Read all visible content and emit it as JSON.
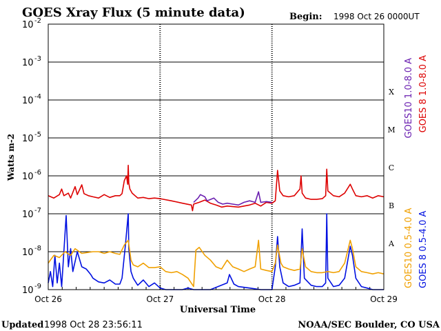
{
  "chart_data": {
    "type": "line",
    "title": "GOES Xray Flux (5 minute data)",
    "begin_label": "Begin:",
    "begin_value": "1998 Oct 26 0000UT",
    "ylabel": "Watts m-2",
    "xlabel": "Universal Time",
    "updated_label": "Updated",
    "updated_value": "1998 Oct 28 23:56:11",
    "credit": "NOAA/SEC Boulder, CO USA",
    "y_scale": "log",
    "ylim": [
      1e-09,
      0.01
    ],
    "y_ticks": [
      {
        "base": "10",
        "exp": "-2",
        "value": 0.01
      },
      {
        "base": "10",
        "exp": "-3",
        "value": 0.001
      },
      {
        "base": "10",
        "exp": "-4",
        "value": 0.0001
      },
      {
        "base": "10",
        "exp": "-5",
        "value": 1e-05
      },
      {
        "base": "10",
        "exp": "-6",
        "value": 1e-06
      },
      {
        "base": "10",
        "exp": "-7",
        "value": 1e-07
      },
      {
        "base": "10",
        "exp": "-8",
        "value": 1e-08
      },
      {
        "base": "10",
        "exp": "-9",
        "value": 1e-09
      }
    ],
    "x_unit": "days since 1998 Oct 26 00:00 UT",
    "xlim": [
      0,
      3
    ],
    "x_ticks": [
      {
        "label": "Oct 26",
        "value": 0
      },
      {
        "label": "Oct 27",
        "value": 1
      },
      {
        "label": "Oct 28",
        "value": 2
      },
      {
        "label": "Oct 29",
        "value": 3
      }
    ],
    "flare_classes": [
      {
        "label": "X",
        "value": 0.0001
      },
      {
        "label": "M",
        "value": 1e-05
      },
      {
        "label": "C",
        "value": 1e-06
      },
      {
        "label": "B",
        "value": 1e-07
      },
      {
        "label": "A",
        "value": 1e-08
      }
    ],
    "legend_placement": "right",
    "series": [
      {
        "name": "GOES 8  1.0-8.0 A",
        "color": "#dd0000",
        "points": [
          [
            0.0,
            3e-07
          ],
          [
            0.05,
            2.6e-07
          ],
          [
            0.1,
            3.2e-07
          ],
          [
            0.12,
            4.5e-07
          ],
          [
            0.14,
            3e-07
          ],
          [
            0.18,
            3.5e-07
          ],
          [
            0.2,
            2.6e-07
          ],
          [
            0.24,
            5.2e-07
          ],
          [
            0.26,
            3.2e-07
          ],
          [
            0.3,
            5.8e-07
          ],
          [
            0.32,
            3.4e-07
          ],
          [
            0.36,
            3e-07
          ],
          [
            0.4,
            2.8e-07
          ],
          [
            0.45,
            2.6e-07
          ],
          [
            0.5,
            3.2e-07
          ],
          [
            0.55,
            2.7e-07
          ],
          [
            0.6,
            3e-07
          ],
          [
            0.64,
            3e-07
          ],
          [
            0.66,
            3.4e-07
          ],
          [
            0.68,
            7.5e-07
          ],
          [
            0.7,
            1e-06
          ],
          [
            0.71,
            6e-07
          ],
          [
            0.715,
            1.9e-06
          ],
          [
            0.72,
            6.5e-07
          ],
          [
            0.73,
            4.5e-07
          ],
          [
            0.75,
            3.5e-07
          ],
          [
            0.8,
            2.6e-07
          ],
          [
            0.85,
            2.7e-07
          ],
          [
            0.9,
            2.5e-07
          ],
          [
            0.95,
            2.6e-07
          ],
          [
            1.0,
            2.5e-07
          ],
          [
            1.1,
            2.2e-07
          ],
          [
            1.2,
            1.9e-07
          ],
          [
            1.28,
            1.7e-07
          ],
          [
            1.29,
            1.2e-07
          ],
          [
            1.3,
            1.8e-07
          ],
          [
            1.35,
            2e-07
          ],
          [
            1.4,
            2.3e-07
          ],
          [
            1.45,
            1.9e-07
          ],
          [
            1.5,
            1.7e-07
          ],
          [
            1.55,
            1.5e-07
          ],
          [
            1.6,
            1.6e-07
          ],
          [
            1.7,
            1.5e-07
          ],
          [
            1.8,
            1.7e-07
          ],
          [
            1.85,
            1.9e-07
          ],
          [
            1.9,
            1.6e-07
          ],
          [
            1.95,
            2e-07
          ],
          [
            2.0,
            1.9e-07
          ],
          [
            2.03,
            2.2e-07
          ],
          [
            2.05,
            1.4e-06
          ],
          [
            2.07,
            4e-07
          ],
          [
            2.1,
            3e-07
          ],
          [
            2.15,
            2.8e-07
          ],
          [
            2.2,
            3e-07
          ],
          [
            2.25,
            4.5e-07
          ],
          [
            2.26,
            1e-06
          ],
          [
            2.27,
            3.5e-07
          ],
          [
            2.3,
            2.6e-07
          ],
          [
            2.35,
            2.4e-07
          ],
          [
            2.4,
            2.4e-07
          ],
          [
            2.45,
            2.5e-07
          ],
          [
            2.48,
            3e-07
          ],
          [
            2.49,
            1.5e-06
          ],
          [
            2.5,
            4e-07
          ],
          [
            2.55,
            3e-07
          ],
          [
            2.6,
            2.8e-07
          ],
          [
            2.65,
            3.5e-07
          ],
          [
            2.7,
            6e-07
          ],
          [
            2.72,
            4.5e-07
          ],
          [
            2.75,
            3e-07
          ],
          [
            2.8,
            2.8e-07
          ],
          [
            2.85,
            3e-07
          ],
          [
            2.9,
            2.6e-07
          ],
          [
            2.95,
            3e-07
          ],
          [
            3.0,
            2.8e-07
          ]
        ]
      },
      {
        "name": "GOES10 1.0-8.0 A",
        "color": "#6a1fb0",
        "points": [
          [
            1.3,
            2e-07
          ],
          [
            1.34,
            2.6e-07
          ],
          [
            1.36,
            3.2e-07
          ],
          [
            1.4,
            2.8e-07
          ],
          [
            1.42,
            2.2e-07
          ],
          [
            1.48,
            2.6e-07
          ],
          [
            1.52,
            2e-07
          ],
          [
            1.56,
            1.8e-07
          ],
          [
            1.6,
            1.9e-07
          ],
          [
            1.65,
            1.8e-07
          ],
          [
            1.7,
            1.7e-07
          ],
          [
            1.75,
            2e-07
          ],
          [
            1.8,
            2.2e-07
          ],
          [
            1.85,
            2e-07
          ],
          [
            1.88,
            3.8e-07
          ],
          [
            1.9,
            2e-07
          ],
          [
            1.95,
            2.1e-07
          ],
          [
            2.0,
            2e-07
          ]
        ]
      },
      {
        "name": "GOES 8  0.5-4.0 A",
        "color": "#0010e0",
        "points": [
          [
            0.0,
            1.5e-09
          ],
          [
            0.02,
            3e-09
          ],
          [
            0.04,
            1.2e-09
          ],
          [
            0.06,
            8e-09
          ],
          [
            0.08,
            1.5e-09
          ],
          [
            0.1,
            5e-09
          ],
          [
            0.12,
            1.2e-09
          ],
          [
            0.16,
            9e-08
          ],
          [
            0.18,
            4e-09
          ],
          [
            0.2,
            1.2e-08
          ],
          [
            0.22,
            3e-09
          ],
          [
            0.26,
            1e-08
          ],
          [
            0.3,
            4e-09
          ],
          [
            0.34,
            3.5e-09
          ],
          [
            0.38,
            2.5e-09
          ],
          [
            0.4,
            2e-09
          ],
          [
            0.45,
            1.6e-09
          ],
          [
            0.5,
            1.5e-09
          ],
          [
            0.55,
            1.8e-09
          ],
          [
            0.6,
            1.4e-09
          ],
          [
            0.64,
            1.4e-09
          ],
          [
            0.66,
            2e-09
          ],
          [
            0.69,
            1.5e-08
          ],
          [
            0.715,
            1e-07
          ],
          [
            0.72,
            1.2e-08
          ],
          [
            0.74,
            3e-09
          ],
          [
            0.76,
            2e-09
          ],
          [
            0.8,
            1.3e-09
          ],
          [
            0.85,
            1.8e-09
          ],
          [
            0.9,
            1.2e-09
          ],
          [
            0.95,
            1.5e-09
          ],
          [
            1.0,
            1.1e-09
          ],
          [
            1.05,
            1e-09
          ],
          [
            1.1,
            1e-09
          ],
          [
            1.2,
            1e-09
          ],
          [
            1.25,
            1.1e-09
          ],
          [
            1.3,
            1e-09
          ],
          [
            1.35,
            1e-09
          ],
          [
            1.4,
            1e-09
          ],
          [
            1.45,
            1e-09
          ],
          [
            1.6,
            1.5e-09
          ],
          [
            1.62,
            2.5e-09
          ],
          [
            1.66,
            1.4e-09
          ],
          [
            1.7,
            1.2e-09
          ],
          [
            1.8,
            1.1e-09
          ],
          [
            1.9,
            1e-09
          ],
          [
            2.0,
            1e-09
          ],
          [
            2.03,
            4e-09
          ],
          [
            2.05,
            2.5e-08
          ],
          [
            2.07,
            4e-09
          ],
          [
            2.1,
            1.5e-09
          ],
          [
            2.15,
            1.2e-09
          ],
          [
            2.2,
            1.3e-09
          ],
          [
            2.25,
            1.5e-09
          ],
          [
            2.27,
            4e-08
          ],
          [
            2.29,
            2e-09
          ],
          [
            2.35,
            1.3e-09
          ],
          [
            2.4,
            1.2e-09
          ],
          [
            2.45,
            1.2e-09
          ],
          [
            2.48,
            1.5e-09
          ],
          [
            2.49,
            1e-07
          ],
          [
            2.5,
            2e-09
          ],
          [
            2.55,
            1.2e-09
          ],
          [
            2.6,
            1.3e-09
          ],
          [
            2.65,
            2e-09
          ],
          [
            2.7,
            1.4e-08
          ],
          [
            2.72,
            8e-09
          ],
          [
            2.75,
            2e-09
          ],
          [
            2.8,
            1.2e-09
          ],
          [
            2.85,
            1.1e-09
          ],
          [
            2.9,
            1e-09
          ],
          [
            2.95,
            1e-09
          ],
          [
            3.0,
            1e-09
          ]
        ]
      },
      {
        "name": "GOES10 0.5-4.0 A",
        "color": "#f0a000",
        "points": [
          [
            0.0,
            5e-09
          ],
          [
            0.05,
            8e-09
          ],
          [
            0.1,
            7e-09
          ],
          [
            0.15,
            1e-08
          ],
          [
            0.2,
            8e-09
          ],
          [
            0.24,
            1.2e-08
          ],
          [
            0.3,
            9e-09
          ],
          [
            0.35,
            9.5e-09
          ],
          [
            0.4,
            1e-08
          ],
          [
            0.45,
            1e-08
          ],
          [
            0.5,
            9e-09
          ],
          [
            0.55,
            1e-08
          ],
          [
            0.6,
            9e-09
          ],
          [
            0.64,
            8.5e-09
          ],
          [
            0.68,
            1.5e-08
          ],
          [
            0.715,
            2e-08
          ],
          [
            0.74,
            6e-09
          ],
          [
            0.76,
            4.5e-09
          ],
          [
            0.8,
            4e-09
          ],
          [
            0.85,
            5e-09
          ],
          [
            0.9,
            3.8e-09
          ],
          [
            0.95,
            3.8e-09
          ],
          [
            1.0,
            4e-09
          ],
          [
            1.05,
            3e-09
          ],
          [
            1.1,
            2.8e-09
          ],
          [
            1.15,
            3e-09
          ],
          [
            1.2,
            2.5e-09
          ],
          [
            1.25,
            2e-09
          ],
          [
            1.3,
            1.2e-09
          ],
          [
            1.32,
            1.1e-08
          ],
          [
            1.35,
            1.3e-08
          ],
          [
            1.4,
            8e-09
          ],
          [
            1.45,
            6e-09
          ],
          [
            1.5,
            4e-09
          ],
          [
            1.55,
            3.5e-09
          ],
          [
            1.6,
            6e-09
          ],
          [
            1.65,
            4e-09
          ],
          [
            1.7,
            3.5e-09
          ],
          [
            1.75,
            3e-09
          ],
          [
            1.8,
            3.5e-09
          ],
          [
            1.85,
            4e-09
          ],
          [
            1.88,
            2e-08
          ],
          [
            1.9,
            3.5e-09
          ],
          [
            1.95,
            3.2e-09
          ],
          [
            2.0,
            3e-09
          ],
          [
            2.03,
            5e-09
          ],
          [
            2.05,
            1.5e-08
          ],
          [
            2.08,
            5e-09
          ],
          [
            2.1,
            4e-09
          ],
          [
            2.15,
            3.5e-09
          ],
          [
            2.2,
            3.2e-09
          ],
          [
            2.25,
            3.5e-09
          ],
          [
            2.27,
            1.2e-08
          ],
          [
            2.3,
            4e-09
          ],
          [
            2.35,
            3e-09
          ],
          [
            2.4,
            2.8e-09
          ],
          [
            2.45,
            2.8e-09
          ],
          [
            2.5,
            3e-09
          ],
          [
            2.55,
            2.8e-09
          ],
          [
            2.6,
            3e-09
          ],
          [
            2.65,
            5e-09
          ],
          [
            2.7,
            2e-08
          ],
          [
            2.72,
            1.2e-08
          ],
          [
            2.75,
            4e-09
          ],
          [
            2.8,
            3e-09
          ],
          [
            2.85,
            2.8e-09
          ],
          [
            2.9,
            2.6e-09
          ],
          [
            2.95,
            2.8e-09
          ],
          [
            3.0,
            2.6e-09
          ]
        ]
      }
    ],
    "legend": {
      "left_column": [
        "GOES10 1.0-8.0 A",
        "GOES10 0.5-4.0 A"
      ],
      "right_column": [
        "GOES 8  1.0-8.0 A",
        "GOES 8  0.5-4.0 A"
      ]
    }
  }
}
